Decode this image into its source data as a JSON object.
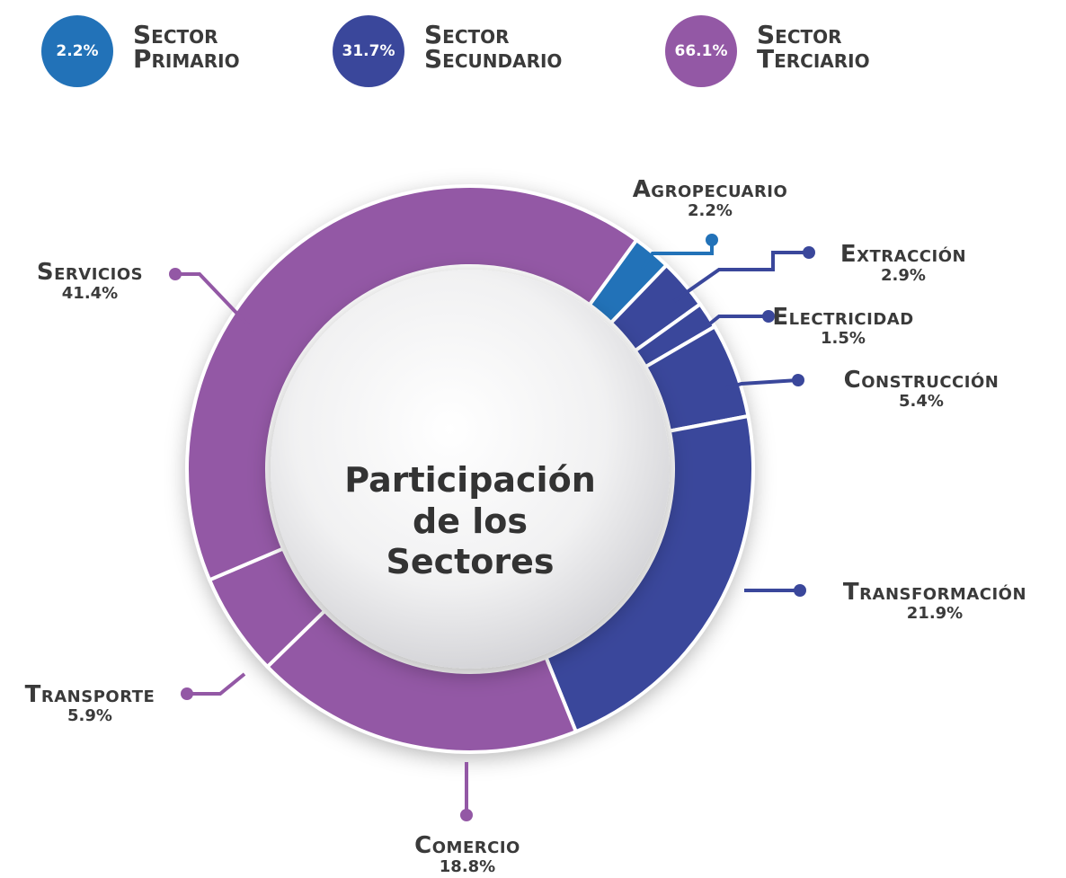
{
  "chart_data": {
    "type": "donut",
    "title": "Participación de los Sectores",
    "groups": [
      {
        "name": "Sector Primario",
        "value": 2.2,
        "value_label": "2.2%",
        "color": "#2272b8"
      },
      {
        "name": "Sector Secundario",
        "value": 31.7,
        "value_label": "31.7%",
        "color": "#3a479b"
      },
      {
        "name": "Sector Terciario",
        "value": 66.1,
        "value_label": "66.1%",
        "color": "#9358a5"
      }
    ],
    "categories": [
      "Agropecuario",
      "Extracción",
      "Electricidad",
      "Construcción",
      "Transformación",
      "Comercio",
      "Transporte",
      "Servicios"
    ],
    "values": [
      2.2,
      2.9,
      1.5,
      5.4,
      21.9,
      18.8,
      5.9,
      41.4
    ],
    "value_labels": [
      "2.2%",
      "2.9%",
      "1.5%",
      "5.4%",
      "21.9%",
      "18.8%",
      "5.9%",
      "41.4%"
    ],
    "colors": [
      "#2272b8",
      "#3a479b",
      "#3a479b",
      "#3a479b",
      "#3a479b",
      "#9358a5",
      "#9358a5",
      "#9358a5"
    ]
  }
}
